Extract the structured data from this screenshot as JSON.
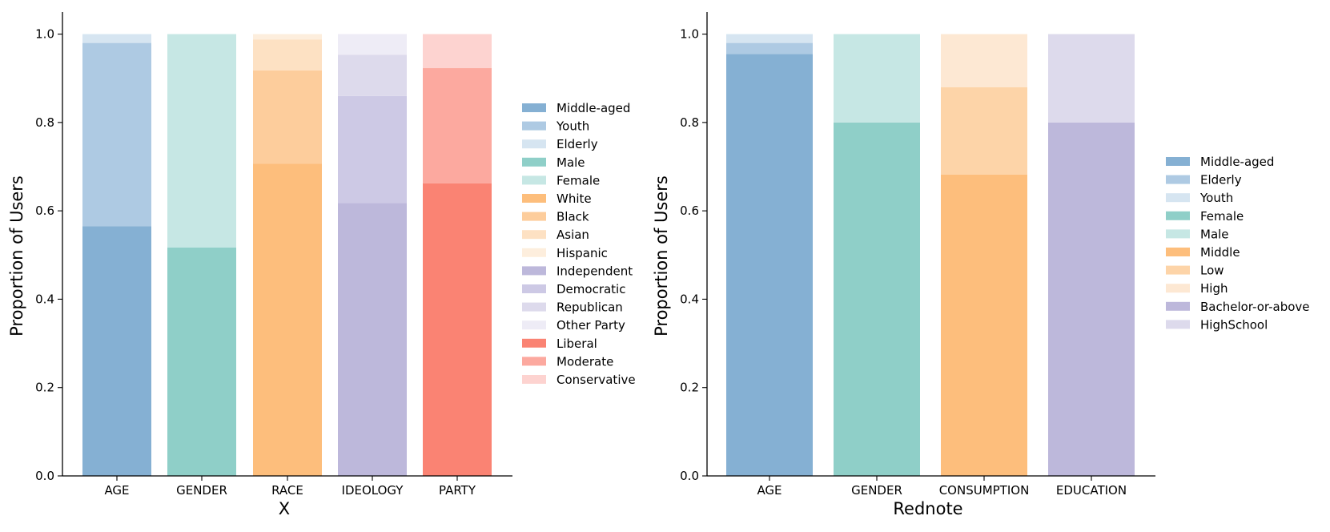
{
  "chart_data": [
    {
      "type": "bar",
      "stacked": true,
      "xlabel": "X",
      "ylabel": "Proportion of Users",
      "ylim": [
        0,
        1.05
      ],
      "yticks": [
        "0.0",
        "0.2",
        "0.4",
        "0.6",
        "0.8",
        "1.0"
      ],
      "ytick_values": [
        0,
        0.2,
        0.4,
        0.6,
        0.8,
        1.0
      ],
      "legend_position": "right",
      "categories": [
        {
          "name": "AGE",
          "segments": [
            {
              "label": "Middle-aged",
              "value": 0.565,
              "color": "#85b0d3"
            },
            {
              "label": "Youth",
              "value": 0.415,
              "color": "#aecae3"
            },
            {
              "label": "Elderly",
              "value": 0.02,
              "color": "#d6e5f1"
            }
          ]
        },
        {
          "name": "GENDER",
          "segments": [
            {
              "label": "Male",
              "value": 0.517,
              "color": "#8fcfc8"
            },
            {
              "label": "Female",
              "value": 0.483,
              "color": "#c6e7e4"
            }
          ]
        },
        {
          "name": "RACE",
          "segments": [
            {
              "label": "White",
              "value": 0.707,
              "color": "#fdbe7c"
            },
            {
              "label": "Black",
              "value": 0.211,
              "color": "#fdcd9c"
            },
            {
              "label": "Asian",
              "value": 0.07,
              "color": "#fde1c3"
            },
            {
              "label": "Hispanic",
              "value": 0.012,
              "color": "#fdeedd"
            }
          ]
        },
        {
          "name": "IDEOLOGY",
          "segments": [
            {
              "label": "Independent",
              "value": 0.618,
              "color": "#bdb8db"
            },
            {
              "label": "Democratic",
              "value": 0.242,
              "color": "#cdc9e5"
            },
            {
              "label": "Republican",
              "value": 0.093,
              "color": "#dddaec"
            },
            {
              "label": "Other Party",
              "value": 0.047,
              "color": "#eeecf6"
            }
          ]
        },
        {
          "name": "PARTY",
          "segments": [
            {
              "label": "Liberal",
              "value": 0.662,
              "color": "#fa8373"
            },
            {
              "label": "Moderate",
              "value": 0.261,
              "color": "#fca99f"
            },
            {
              "label": "Conservative",
              "value": 0.077,
              "color": "#fdd3d0"
            }
          ]
        }
      ],
      "legend": [
        {
          "label": "Middle-aged",
          "color": "#85b0d3"
        },
        {
          "label": "Youth",
          "color": "#aecae3"
        },
        {
          "label": "Elderly",
          "color": "#d6e5f1"
        },
        {
          "label": "Male",
          "color": "#8fcfc8"
        },
        {
          "label": "Female",
          "color": "#c6e7e4"
        },
        {
          "label": "White",
          "color": "#fdbe7c"
        },
        {
          "label": "Black",
          "color": "#fdcd9c"
        },
        {
          "label": "Asian",
          "color": "#fde1c3"
        },
        {
          "label": "Hispanic",
          "color": "#fdeedd"
        },
        {
          "label": "Independent",
          "color": "#bdb8db"
        },
        {
          "label": "Democratic",
          "color": "#cdc9e5"
        },
        {
          "label": "Republican",
          "color": "#dddaec"
        },
        {
          "label": "Other Party",
          "color": "#eeecf6"
        },
        {
          "label": "Liberal",
          "color": "#fa8373"
        },
        {
          "label": "Moderate",
          "color": "#fca99f"
        },
        {
          "label": "Conservative",
          "color": "#fdd3d0"
        }
      ]
    },
    {
      "type": "bar",
      "stacked": true,
      "xlabel": "Rednote",
      "ylabel": "Proportion of Users",
      "ylim": [
        0,
        1.05
      ],
      "yticks": [
        "0.0",
        "0.2",
        "0.4",
        "0.6",
        "0.8",
        "1.0"
      ],
      "ytick_values": [
        0,
        0.2,
        0.4,
        0.6,
        0.8,
        1.0
      ],
      "legend_position": "right",
      "categories": [
        {
          "name": "AGE",
          "segments": [
            {
              "label": "Middle-aged",
              "value": 0.955,
              "color": "#85b0d3"
            },
            {
              "label": "Elderly",
              "value": 0.025,
              "color": "#aecae3"
            },
            {
              "label": "Youth",
              "value": 0.02,
              "color": "#d6e5f1"
            }
          ]
        },
        {
          "name": "GENDER",
          "segments": [
            {
              "label": "Female",
              "value": 0.8,
              "color": "#8fcfc8"
            },
            {
              "label": "Male",
              "value": 0.2,
              "color": "#c6e7e4"
            }
          ]
        },
        {
          "name": "CONSUMPTION",
          "segments": [
            {
              "label": "Middle",
              "value": 0.682,
              "color": "#fdbe7c"
            },
            {
              "label": "Low",
              "value": 0.198,
              "color": "#fdd4a8"
            },
            {
              "label": "High",
              "value": 0.12,
              "color": "#fde8d3"
            }
          ]
        },
        {
          "name": "EDUCATION",
          "segments": [
            {
              "label": "Bachelor-or-above",
              "value": 0.8,
              "color": "#bdb8db"
            },
            {
              "label": "HighSchool",
              "value": 0.2,
              "color": "#dddaec"
            }
          ]
        }
      ],
      "legend": [
        {
          "label": "Middle-aged",
          "color": "#85b0d3"
        },
        {
          "label": "Elderly",
          "color": "#aecae3"
        },
        {
          "label": "Youth",
          "color": "#d6e5f1"
        },
        {
          "label": "Female",
          "color": "#8fcfc8"
        },
        {
          "label": "Male",
          "color": "#c6e7e4"
        },
        {
          "label": "Middle",
          "color": "#fdbe7c"
        },
        {
          "label": "Low",
          "color": "#fdd4a8"
        },
        {
          "label": "High",
          "color": "#fde8d3"
        },
        {
          "label": "Bachelor-or-above",
          "color": "#bdb8db"
        },
        {
          "label": "HighSchool",
          "color": "#dddaec"
        }
      ]
    }
  ]
}
